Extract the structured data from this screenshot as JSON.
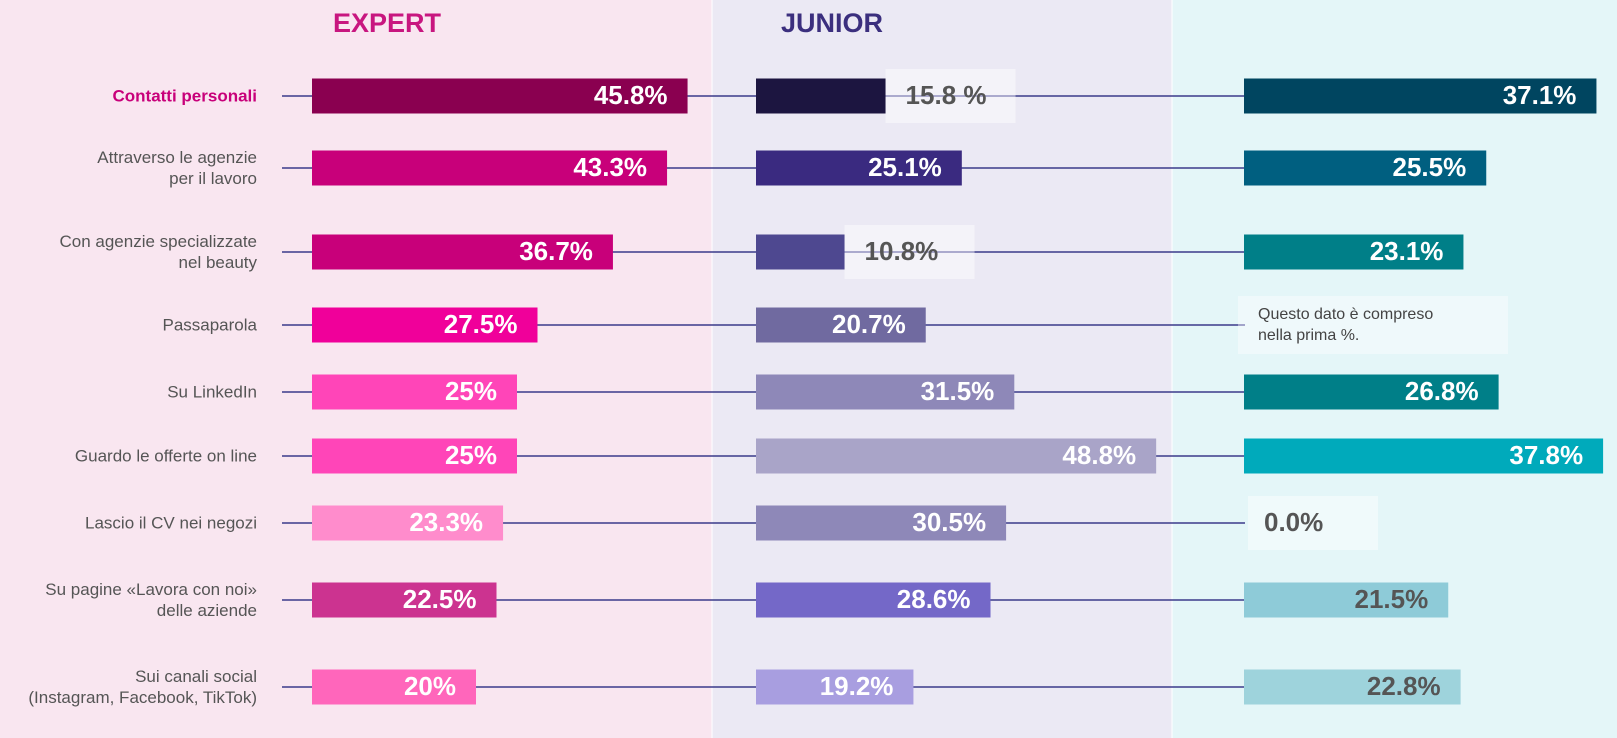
{
  "chart_data": {
    "type": "bar",
    "categories": [
      "Contatti personali",
      "Attraverso le agenzie\nper il lavoro",
      "Con agenzie specializzate\nnel beauty",
      "Passaparola",
      "Su LinkedIn",
      "Guardo le offerte on line",
      "Lascio il CV nei negozi",
      "Su pagine «Lavora con noi»\ndelle aziende",
      "Sui canali social\n(Instagram, Facebook, TikTok)"
    ],
    "series": [
      {
        "name": "EXPERT",
        "color": "#c8167f",
        "values": [
          45.8,
          43.3,
          36.7,
          27.5,
          25,
          25,
          23.3,
          22.5,
          20
        ],
        "value_labels": [
          "45.8%",
          "43.3%",
          "36.7%",
          "27.5%",
          "25%",
          "25%",
          "23.3%",
          "22.5%",
          "20%"
        ],
        "colors": [
          "#8a0050",
          "#c8007a",
          "#c8007a",
          "#f0009a",
          "#ff45b8",
          "#ff45b8",
          "#ff8ccc",
          "#cc3390",
          "#ff66bb"
        ]
      },
      {
        "name": "JUNIOR",
        "color": "#3b2f7e",
        "values": [
          15.8,
          25.1,
          10.8,
          20.7,
          31.5,
          48.8,
          30.5,
          28.6,
          19.2
        ],
        "value_labels": [
          "15.8 %",
          "25.1%",
          "10.8%",
          "20.7%",
          "31.5%",
          "48.8%",
          "30.5%",
          "28.6%",
          "19.2%"
        ],
        "colors": [
          "#1c1540",
          "#3a2a80",
          "#4e4890",
          "#706aa0",
          "#8e88b8",
          "#a9a4c8",
          "#8e88b8",
          "#7468c8",
          "#a89ee0"
        ]
      },
      {
        "values": [
          37.1,
          25.5,
          23.1,
          null,
          26.8,
          37.8,
          0,
          21.5,
          22.8
        ],
        "value_labels": [
          "37.1%",
          "25.5%",
          "23.1%",
          null,
          "26.8%",
          "37.8%",
          "0.0%",
          "21.5%",
          "22.8%"
        ],
        "colors": [
          "#004560",
          "#005f80",
          "#007f88",
          null,
          "#007f88",
          "#00aabb",
          null,
          "#8ecbd8",
          "#9ed3dc"
        ],
        "annotation": "Questo dato è compreso\nnella prima %."
      }
    ]
  }
}
